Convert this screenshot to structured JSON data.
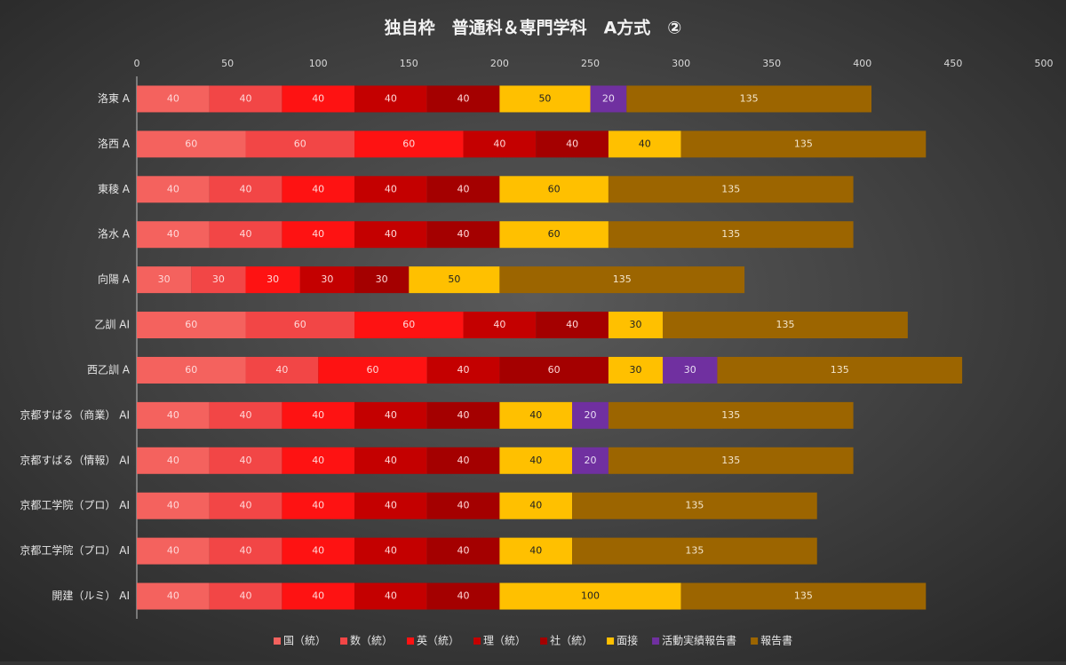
{
  "chart_data": {
    "type": "stacked-barh",
    "title": "独自枠　普通科＆専門学科　A方式　②",
    "categories": [
      "洛東 A",
      "洛西 A",
      "東稜 A",
      "洛水 A",
      "向陽 A",
      "乙訓 AI",
      "西乙訓 A",
      "京都すばる（商業） AI",
      "京都すばる（情報） AI",
      "京都工学院（プロ） AI",
      "京都工学院（プロ） AI",
      "開建（ルミ） AI"
    ],
    "series": [
      {
        "name": "国（統）",
        "color": "#f4625e",
        "label_color": "#ffd8d8",
        "values": [
          40,
          60,
          40,
          40,
          30,
          60,
          60,
          40,
          40,
          40,
          40,
          40
        ]
      },
      {
        "name": "数（統）",
        "color": "#f24646",
        "label_color": "#ffd8d8",
        "values": [
          40,
          60,
          40,
          40,
          30,
          60,
          40,
          40,
          40,
          40,
          40,
          40
        ]
      },
      {
        "name": "英（統）",
        "color": "#fe1212",
        "label_color": "#ffd8d8",
        "values": [
          40,
          60,
          40,
          40,
          30,
          60,
          60,
          40,
          40,
          40,
          40,
          40
        ]
      },
      {
        "name": "理（統）",
        "color": "#c40000",
        "label_color": "#ffd8d8",
        "values": [
          40,
          40,
          40,
          40,
          30,
          40,
          40,
          40,
          40,
          40,
          40,
          40
        ]
      },
      {
        "name": "社（統）",
        "color": "#a40000",
        "label_color": "#ffd8d8",
        "values": [
          40,
          40,
          40,
          40,
          30,
          40,
          60,
          40,
          40,
          40,
          40,
          40
        ]
      },
      {
        "name": "面接",
        "color": "#ffc000",
        "label_color": "#222222",
        "values": [
          50,
          40,
          60,
          60,
          50,
          30,
          30,
          40,
          40,
          40,
          40,
          100
        ]
      },
      {
        "name": "活動実績報告書",
        "color": "#7030a0",
        "label_color": "#e8dcf4",
        "values": [
          20,
          null,
          null,
          null,
          null,
          null,
          30,
          20,
          20,
          null,
          null,
          null
        ]
      },
      {
        "name": "報告書",
        "color": "#9c6500",
        "label_color": "#f4e6cc",
        "values": [
          135,
          135,
          135,
          135,
          135,
          135,
          135,
          135,
          135,
          135,
          135,
          135
        ]
      }
    ],
    "xlim": [
      0,
      500
    ],
    "xticks": [
      0,
      50,
      100,
      150,
      200,
      250,
      300,
      350,
      400,
      450,
      500
    ],
    "legend": "bottom"
  }
}
